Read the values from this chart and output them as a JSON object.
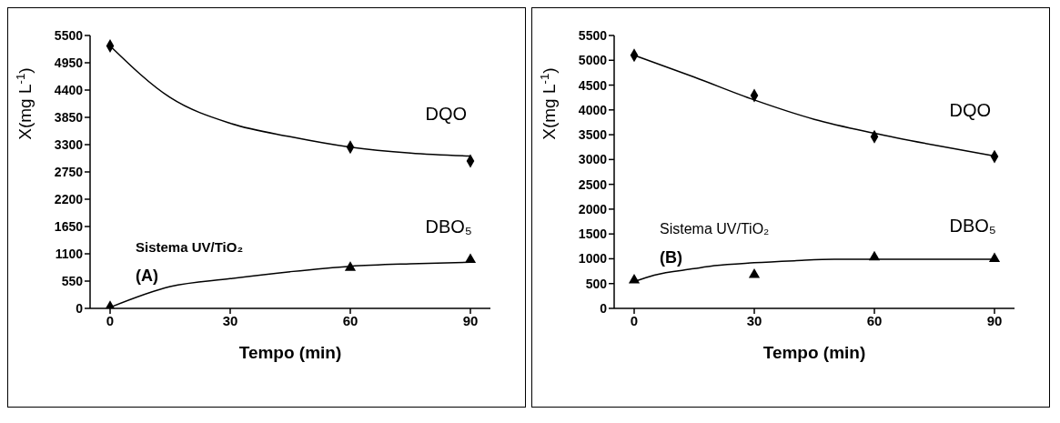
{
  "chart_data": [
    {
      "type": "scatter",
      "xlabel": "Tempo (min)",
      "ylabel": "X(mg L$^{-1}$)",
      "xlim": [
        -5,
        95
      ],
      "xticks": [
        0,
        30,
        60,
        90
      ],
      "ylim": [
        0,
        5500
      ],
      "yticks": [
        0,
        550,
        1100,
        1650,
        2200,
        2750,
        3300,
        3850,
        4400,
        4950,
        5500
      ],
      "grid": false,
      "annotations": [
        "Sistema UV/TiO₂",
        "(A)"
      ],
      "series": [
        {
          "type": "line",
          "color": "#000000",
          "marker": "none",
          "line_style": "solid",
          "x": [
            0,
            15,
            30,
            45,
            60,
            75,
            90
          ],
          "values": [
            5290,
            4250,
            3730,
            3460,
            3250,
            3130,
            3070
          ]
        },
        {
          "type": "line",
          "color": "#000000",
          "marker": "none",
          "line_style": "solid",
          "x": [
            0,
            15,
            30,
            45,
            60,
            75,
            90
          ],
          "values": [
            20,
            440,
            600,
            740,
            850,
            900,
            930
          ]
        },
        {
          "name": "DQO",
          "color": "#000000",
          "marker": "diamond",
          "x": [
            0,
            60,
            90
          ],
          "values": [
            5290,
            3250,
            2970
          ]
        },
        {
          "name": "DBO₅",
          "color": "#000000",
          "marker": "triangle",
          "x": [
            0,
            60,
            90
          ],
          "values": [
            30,
            820,
            980
          ]
        }
      ]
    },
    {
      "type": "scatter",
      "xlabel": "Tempo (min)",
      "ylabel": "X(mg L$^{-1}$)",
      "xlim": [
        -5,
        95
      ],
      "xticks": [
        0,
        30,
        60,
        90
      ],
      "ylim": [
        0,
        5500
      ],
      "yticks": [
        0,
        500,
        1000,
        1500,
        2000,
        2500,
        3000,
        3500,
        4000,
        4500,
        5000,
        5500
      ],
      "grid": false,
      "annotations": [
        "Sistema UV/TiO₂",
        "(B)"
      ],
      "series": [
        {
          "type": "line",
          "color": "#000000",
          "marker": "none",
          "line_style": "solid",
          "x": [
            0,
            15,
            30,
            45,
            60,
            75,
            90
          ],
          "values": [
            5100,
            4660,
            4200,
            3810,
            3530,
            3290,
            3070
          ]
        },
        {
          "type": "line",
          "color": "#000000",
          "marker": "none",
          "line_style": "solid",
          "x": [
            0,
            5,
            15,
            20,
            30,
            40,
            50,
            60,
            90
          ],
          "values": [
            540,
            670,
            800,
            860,
            920,
            960,
            990,
            990,
            990
          ]
        },
        {
          "name": "DQO",
          "color": "#000000",
          "marker": "diamond",
          "x": [
            0,
            30,
            60,
            90
          ],
          "values": [
            5100,
            4290,
            3460,
            3060
          ]
        },
        {
          "name": "DBO₅",
          "color": "#000000",
          "marker": "triangle",
          "x": [
            0,
            30,
            60,
            90
          ],
          "values": [
            570,
            680,
            1030,
            1000
          ]
        }
      ]
    }
  ]
}
